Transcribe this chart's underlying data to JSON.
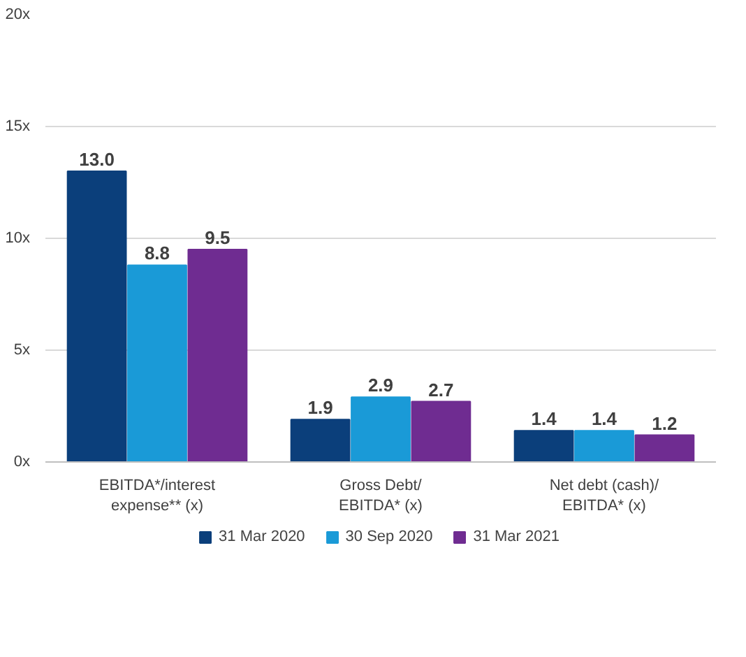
{
  "chart_data": {
    "type": "bar",
    "categories": [
      "EBITDA*/interest\nexpense** (x)",
      "Gross Debt/\nEBITDA* (x)",
      "Net debt (cash)/\nEBITDA* (x)"
    ],
    "series": [
      {
        "name": "31 Mar 2020",
        "color": "#0b3f7b",
        "values": [
          13.0,
          1.9,
          1.4
        ],
        "value_labels": [
          "13.0",
          "1.9",
          "1.4"
        ]
      },
      {
        "name": "30 Sep 2020",
        "color": "#1a9ad7",
        "values": [
          8.8,
          2.9,
          1.4
        ],
        "value_labels": [
          "8.8",
          "2.9",
          "1.4"
        ]
      },
      {
        "name": "31 Mar 2021",
        "color": "#6f2c91",
        "values": [
          9.5,
          2.7,
          1.2
        ],
        "value_labels": [
          "9.5",
          "2.7",
          "1.2"
        ]
      }
    ],
    "ylim": [
      0,
      20
    ],
    "yticks": [
      {
        "value": 0,
        "label": "0x"
      },
      {
        "value": 5,
        "label": "5x"
      },
      {
        "value": 10,
        "label": "10x"
      },
      {
        "value": 15,
        "label": "15x"
      },
      {
        "value": 20,
        "label": "20x"
      }
    ],
    "grid": "y",
    "legend": "bottom"
  }
}
